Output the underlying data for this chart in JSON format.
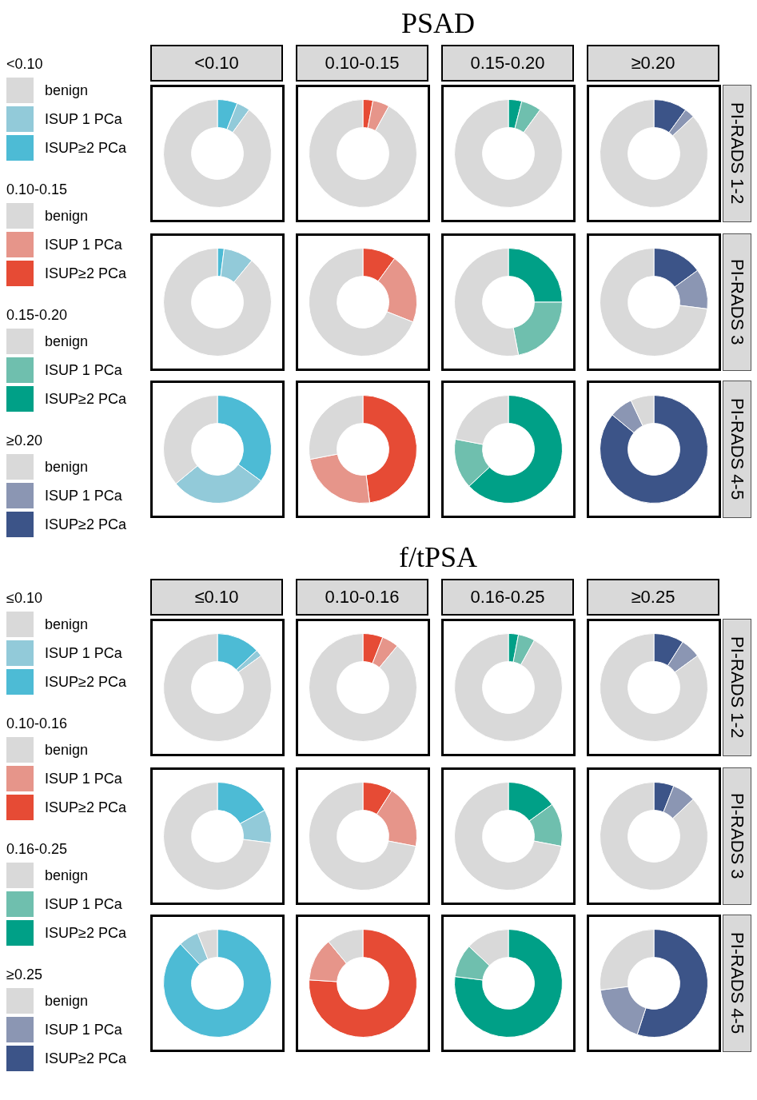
{
  "chart_data": [
    {
      "type": "other",
      "title": "PSAD"
    },
    {
      "type": "donut",
      "title": "<0.10",
      "legend": "left",
      "legend_title": "<0.10",
      "categories": [
        "benign",
        "ISUP 1 PCa",
        "ISUP≥2 PCa"
      ],
      "values": [
        90,
        4,
        6
      ],
      "colors": [
        "#d9d9d9",
        "#92cad9",
        "#4dbbd5"
      ]
    },
    {
      "type": "donut",
      "title": "0.10-0.15",
      "legend": "left",
      "legend_title": "0.10-0.15",
      "categories": [
        "benign",
        "ISUP 1 PCa",
        "ISUP≥2 PCa"
      ],
      "values": [
        92,
        5,
        3
      ],
      "colors": [
        "#d9d9d9",
        "#e6958a",
        "#e64b35"
      ]
    },
    {
      "type": "donut",
      "title": "0.15-0.20",
      "legend": "left",
      "legend_title": "0.15-0.20",
      "categories": [
        "benign",
        "ISUP 1 PCa",
        "ISUP≥2 PCa"
      ],
      "values": [
        90,
        6,
        4
      ],
      "colors": [
        "#d9d9d9",
        "#6fbfae",
        "#00a087"
      ]
    },
    {
      "type": "donut",
      "title": "≥0.20",
      "y2label": "PI-RADS 1-2",
      "legend": "left",
      "legend_title": "≥0.20",
      "categories": [
        "benign",
        "ISUP 1 PCa",
        "ISUP≥2 PCa"
      ],
      "values": [
        87,
        3,
        10
      ],
      "colors": [
        "#d9d9d9",
        "#8b96b3",
        "#3c5488"
      ]
    },
    {
      "type": "donut",
      "categories": [
        null,
        null,
        null
      ],
      "values": [
        89,
        9,
        2
      ],
      "colors": [
        "#d9d9d9",
        "#92cad9",
        "#4dbbd5"
      ]
    },
    {
      "type": "donut",
      "categories": [
        null,
        null,
        null
      ],
      "values": [
        69,
        21,
        10
      ],
      "colors": [
        "#d9d9d9",
        "#e6958a",
        "#e64b35"
      ]
    },
    {
      "type": "donut",
      "categories": [
        null,
        null,
        null
      ],
      "values": [
        53,
        22,
        25
      ],
      "colors": [
        "#d9d9d9",
        "#6fbfae",
        "#00a087"
      ]
    },
    {
      "type": "donut",
      "y2label": "PI-RADS 3",
      "categories": [
        null,
        null,
        null
      ],
      "values": [
        73,
        12,
        15
      ],
      "colors": [
        "#d9d9d9",
        "#8b96b3",
        "#3c5488"
      ]
    },
    {
      "type": "donut",
      "categories": [
        null,
        null,
        null
      ],
      "values": [
        36,
        29,
        35
      ],
      "colors": [
        "#d9d9d9",
        "#92cad9",
        "#4dbbd5"
      ]
    },
    {
      "type": "donut",
      "categories": [
        null,
        null,
        null
      ],
      "values": [
        28,
        24,
        48
      ],
      "colors": [
        "#d9d9d9",
        "#e6958a",
        "#e64b35"
      ]
    },
    {
      "type": "donut",
      "categories": [
        null,
        null,
        null
      ],
      "values": [
        22,
        15,
        63
      ],
      "colors": [
        "#d9d9d9",
        "#6fbfae",
        "#00a087"
      ]
    },
    {
      "type": "donut",
      "y2label": "PI-RADS 4-5",
      "categories": [
        null,
        null,
        null
      ],
      "values": [
        7,
        7,
        86
      ],
      "colors": [
        "#d9d9d9",
        "#8b96b3",
        "#3c5488"
      ]
    },
    {
      "type": "other",
      "title": "f/tPSA"
    },
    {
      "type": "donut",
      "title": "≤0.10",
      "legend": "left",
      "legend_title": "≤0.10",
      "categories": [
        "benign",
        "ISUP 1 PCa",
        "ISUP≥2 PCa"
      ],
      "values": [
        85,
        2,
        13
      ],
      "colors": [
        "#d9d9d9",
        "#92cad9",
        "#4dbbd5"
      ]
    },
    {
      "type": "donut",
      "title": "0.10-0.16",
      "legend": "left",
      "legend_title": "0.10-0.16",
      "categories": [
        "benign",
        "ISUP 1 PCa",
        "ISUP≥2 PCa"
      ],
      "values": [
        89,
        5,
        6
      ],
      "colors": [
        "#d9d9d9",
        "#e6958a",
        "#e64b35"
      ]
    },
    {
      "type": "donut",
      "title": "0.16-0.25",
      "legend": "left",
      "legend_title": "0.16-0.25",
      "categories": [
        "benign",
        "ISUP 1 PCa",
        "ISUP≥2 PCa"
      ],
      "values": [
        92,
        5,
        3
      ],
      "colors": [
        "#d9d9d9",
        "#6fbfae",
        "#00a087"
      ]
    },
    {
      "type": "donut",
      "title": "≥0.25",
      "y2label": "PI-RADS 1-2",
      "legend": "left",
      "legend_title": "≥0.25",
      "categories": [
        "benign",
        "ISUP 1 PCa",
        "ISUP≥2 PCa"
      ],
      "values": [
        85,
        6,
        9
      ],
      "colors": [
        "#d9d9d9",
        "#8b96b3",
        "#3c5488"
      ]
    },
    {
      "type": "donut",
      "categories": [
        null,
        null,
        null
      ],
      "values": [
        73,
        10,
        17
      ],
      "colors": [
        "#d9d9d9",
        "#92cad9",
        "#4dbbd5"
      ]
    },
    {
      "type": "donut",
      "categories": [
        null,
        null,
        null
      ],
      "values": [
        72,
        19,
        9
      ],
      "colors": [
        "#d9d9d9",
        "#e6958a",
        "#e64b35"
      ]
    },
    {
      "type": "donut",
      "categories": [
        null,
        null,
        null
      ],
      "values": [
        72,
        13,
        15
      ],
      "colors": [
        "#d9d9d9",
        "#6fbfae",
        "#00a087"
      ]
    },
    {
      "type": "donut",
      "y2label": "PI-RADS 3",
      "categories": [
        null,
        null,
        null
      ],
      "values": [
        87,
        7,
        6
      ],
      "colors": [
        "#d9d9d9",
        "#8b96b3",
        "#3c5488"
      ]
    },
    {
      "type": "donut",
      "categories": [
        null,
        null,
        null
      ],
      "values": [
        6,
        6,
        88
      ],
      "colors": [
        "#d9d9d9",
        "#92cad9",
        "#4dbbd5"
      ]
    },
    {
      "type": "donut",
      "categories": [
        null,
        null,
        null
      ],
      "values": [
        11,
        13,
        76
      ],
      "colors": [
        "#d9d9d9",
        "#e6958a",
        "#e64b35"
      ]
    },
    {
      "type": "donut",
      "categories": [
        null,
        null,
        null
      ],
      "values": [
        13,
        10,
        77
      ],
      "colors": [
        "#d9d9d9",
        "#6fbfae",
        "#00a087"
      ]
    },
    {
      "type": "donut",
      "y2label": "PI-RADS 4-5",
      "categories": [
        null,
        null,
        null
      ],
      "values": [
        27,
        18,
        55
      ],
      "colors": [
        "#d9d9d9",
        "#8b96b3",
        "#3c5488"
      ]
    }
  ]
}
